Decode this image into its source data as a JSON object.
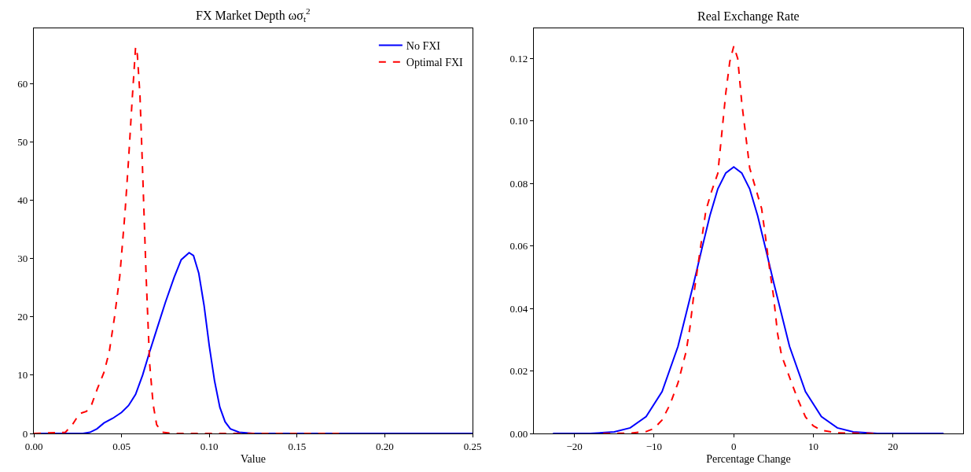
{
  "chart_data": [
    {
      "type": "line",
      "title": "FX Market Depth ωσ$_{t}$$^{2}$",
      "xlabel": "Value",
      "xlim": [
        0,
        0.25
      ],
      "ylim": [
        0,
        69.5
      ],
      "legend": "top right",
      "marker": "none",
      "xticks": [
        {
          "value": 0,
          "label": "0.00"
        },
        {
          "value": 0.05,
          "label": "0.05"
        },
        {
          "value": 0.1,
          "label": "0.10"
        },
        {
          "value": 0.15,
          "label": "0.15"
        },
        {
          "value": 0.2,
          "label": "0.20"
        },
        {
          "value": 0.25,
          "label": "0.25"
        }
      ],
      "yticks": [
        0,
        10,
        20,
        30,
        40,
        50,
        60
      ],
      "series": [
        {
          "name": "No FXI",
          "color": "#0000ff",
          "line_style": "solid",
          "x": [
            0,
            0.028,
            0.032,
            0.036,
            0.04,
            0.045,
            0.05,
            0.054,
            0.058,
            0.062,
            0.066,
            0.07,
            0.075,
            0.08,
            0.084,
            0.0885,
            0.091,
            0.094,
            0.097,
            0.1,
            0.103,
            0.106,
            0.109,
            0.112,
            0.117,
            0.125,
            0.25
          ],
          "values": [
            0,
            0,
            0.2,
            0.8,
            1.8,
            2.6,
            3.6,
            4.8,
            6.7,
            10,
            14,
            17.8,
            22.5,
            26.8,
            29.8,
            31,
            30.5,
            27.5,
            22,
            15,
            9,
            4.5,
            2,
            0.8,
            0.2,
            0,
            0
          ]
        },
        {
          "name": "Optimal FXI",
          "color": "#ff0000",
          "line_style": "dashed",
          "x": [
            0,
            0.018,
            0.022,
            0.026,
            0.03,
            0.033,
            0.036,
            0.04,
            0.043,
            0.046,
            0.049,
            0.052,
            0.054,
            0.056,
            0.0575,
            0.058,
            0.059,
            0.0605,
            0.062,
            0.064,
            0.066,
            0.068,
            0.07,
            0.073,
            0.08,
            0.174
          ],
          "values": [
            0,
            0.2,
            1.5,
            3.4,
            3.8,
            5,
            7.5,
            10.5,
            14,
            20,
            27,
            38,
            47,
            57,
            64,
            66.3,
            65,
            58,
            45,
            27,
            12,
            5,
            1.5,
            0.2,
            0,
            0
          ]
        }
      ]
    },
    {
      "type": "line",
      "title": "Real Exchange Rate",
      "xlabel": "Percentage Change",
      "xlim": [
        -25.1,
        28.8
      ],
      "ylim": [
        0,
        0.1297
      ],
      "legend": false,
      "marker": "none",
      "xticks": [
        {
          "value": -20,
          "label": "−20"
        },
        {
          "value": -10,
          "label": "−10"
        },
        0,
        10,
        20
      ],
      "yticks": [
        {
          "value": 0,
          "label": "0.00"
        },
        {
          "value": 0.02,
          "label": "0.02"
        },
        {
          "value": 0.04,
          "label": "0.04"
        },
        {
          "value": 0.06,
          "label": "0.06"
        },
        {
          "value": 0.08,
          "label": "0.08"
        },
        {
          "value": 0.1,
          "label": "0.10"
        },
        {
          "value": 0.12,
          "label": "0.12"
        }
      ],
      "series": [
        {
          "color": "#0000ff",
          "line_style": "solid",
          "x": [
            -22.7,
            -18,
            -15,
            -13,
            -11,
            -9,
            -7,
            -5,
            -4,
            -3,
            -2,
            -1,
            0,
            1,
            2,
            3,
            4,
            5,
            7,
            9,
            11,
            13,
            15,
            18,
            22,
            26.35
          ],
          "values": [
            0,
            0,
            0.0005,
            0.0018,
            0.0054,
            0.0134,
            0.0279,
            0.0484,
            0.0592,
            0.0697,
            0.0783,
            0.0834,
            0.0853,
            0.0834,
            0.0783,
            0.0697,
            0.0592,
            0.0484,
            0.0279,
            0.0134,
            0.0054,
            0.0018,
            0.0005,
            0,
            0,
            0
          ]
        },
        {
          "color": "#ff0000",
          "line_style": "dashed",
          "x": [
            -16.4,
            -13,
            -11,
            -10,
            -9,
            -8,
            -7,
            -6,
            -5.5,
            -5,
            -4.5,
            -4,
            -3.5,
            -2.8,
            -2,
            -1,
            -0.5,
            0,
            0.5,
            1,
            2,
            2.8,
            3.5,
            4,
            4.5,
            5,
            5.5,
            6,
            7,
            8,
            9,
            10,
            11,
            13,
            17.7
          ],
          "values": [
            0,
            0.0001,
            0.0006,
            0.0016,
            0.0043,
            0.0093,
            0.0162,
            0.026,
            0.034,
            0.0448,
            0.0537,
            0.0626,
            0.0714,
            0.0774,
            0.0833,
            0.109,
            0.119,
            0.124,
            0.12,
            0.106,
            0.085,
            0.078,
            0.072,
            0.0626,
            0.0527,
            0.0438,
            0.032,
            0.025,
            0.018,
            0.0112,
            0.0053,
            0.0024,
            0.001,
            0.0002,
            0
          ]
        }
      ]
    }
  ]
}
